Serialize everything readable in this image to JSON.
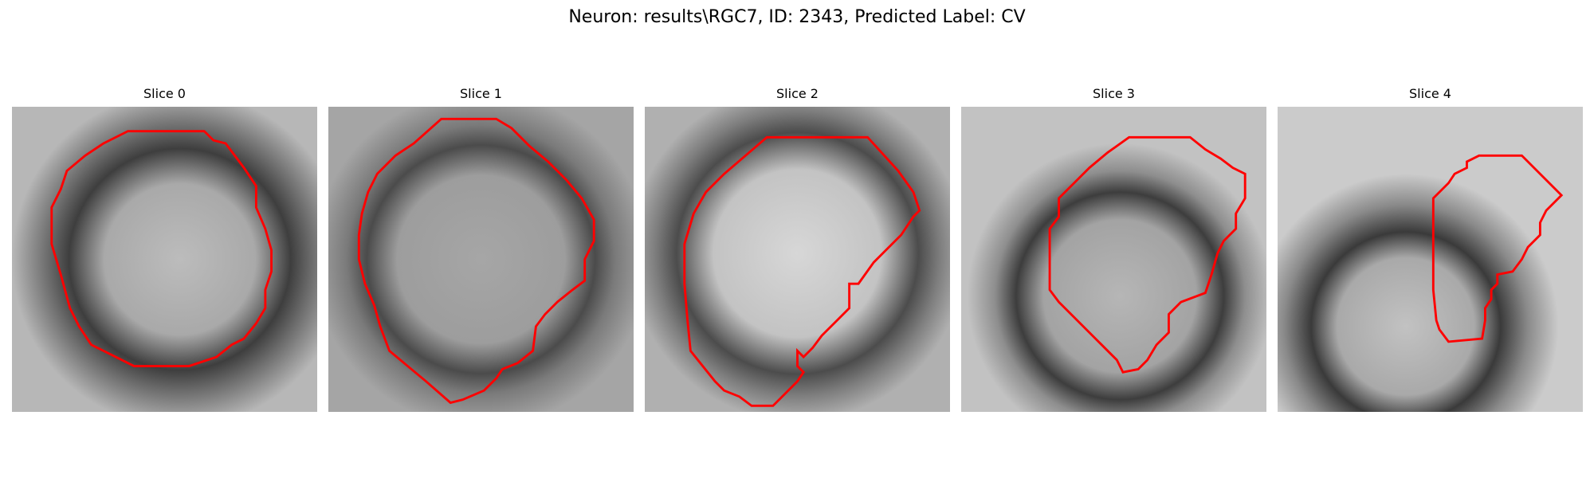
{
  "figure": {
    "title": "Neuron: results\\RGC7, ID: 2343, Predicted Label: CV"
  },
  "contour_color": "#ff0000",
  "panels": [
    {
      "title": "Slice 0"
    },
    {
      "title": "Slice 1"
    },
    {
      "title": "Slice 2"
    },
    {
      "title": "Slice 3"
    },
    {
      "title": "Slice 4"
    }
  ]
}
